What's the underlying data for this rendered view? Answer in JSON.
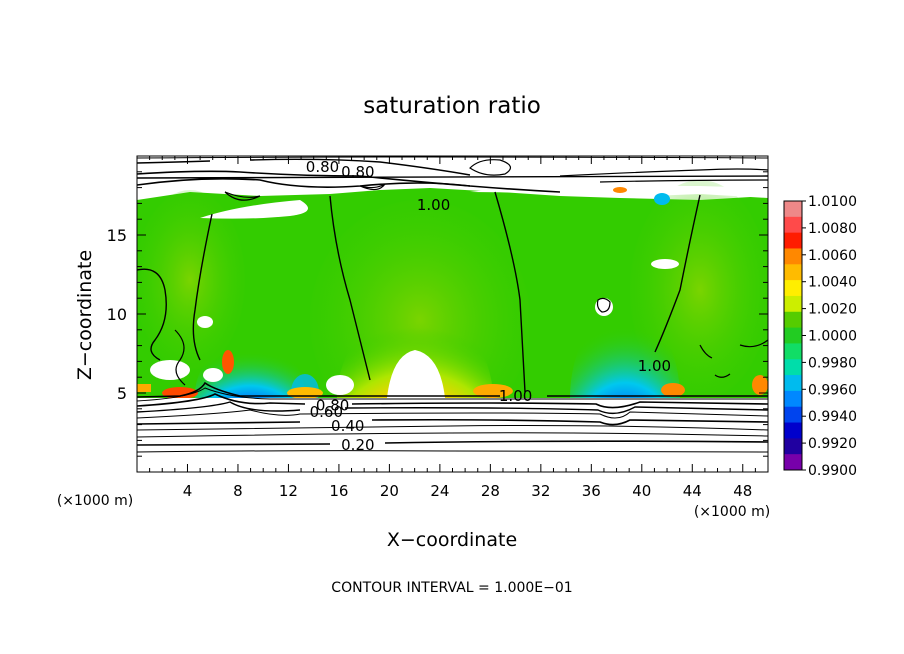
{
  "chart_data": {
    "type": "heatmap",
    "title": "saturation ratio",
    "xlabel": "X−coordinate",
    "ylabel": "Z−coordinate",
    "x_unit": "(×1000 m)",
    "y_unit": "(×1000 m)",
    "xlim": [
      0,
      50
    ],
    "ylim": [
      0,
      20
    ],
    "x_ticks": [
      4,
      8,
      12,
      16,
      20,
      24,
      28,
      32,
      36,
      40,
      44,
      48
    ],
    "y_ticks": [
      5,
      10,
      15
    ],
    "footer": "CONTOUR INTERVAL = 1.000E−01",
    "colorbar": {
      "levels": [
        "1.0100",
        "1.0080",
        "1.0060",
        "1.0040",
        "1.0020",
        "1.0000",
        "0.9980",
        "0.9960",
        "0.9940",
        "0.9920",
        "0.9900"
      ],
      "colors": [
        "#ee8888",
        "#ff4a4a",
        "#ff1c00",
        "#ff8800",
        "#ffbb00",
        "#ffee00",
        "#ccee00",
        "#55cc00",
        "#22cc22",
        "#11dd66",
        "#00ddaa",
        "#00bbee",
        "#0088ff",
        "#0044ee",
        "#0000cc",
        "#2000a0",
        "#7700aa"
      ]
    },
    "contour_labels": [
      {
        "text": "0.80",
        "x": 14.7,
        "y": 19.3
      },
      {
        "text": "0.80",
        "x": 17.5,
        "y": 19.0
      },
      {
        "text": "1.00",
        "x": 23.5,
        "y": 16.9
      },
      {
        "text": "1.00",
        "x": 30.0,
        "y": 4.8
      },
      {
        "text": "1.00",
        "x": 41.0,
        "y": 6.7
      },
      {
        "text": "0.80",
        "x": 15.5,
        "y": 4.2
      },
      {
        "text": "0.60",
        "x": 15.0,
        "y": 3.8
      },
      {
        "text": "0.40",
        "x": 16.7,
        "y": 2.9
      },
      {
        "text": "0.20",
        "x": 17.5,
        "y": 1.7
      }
    ]
  }
}
